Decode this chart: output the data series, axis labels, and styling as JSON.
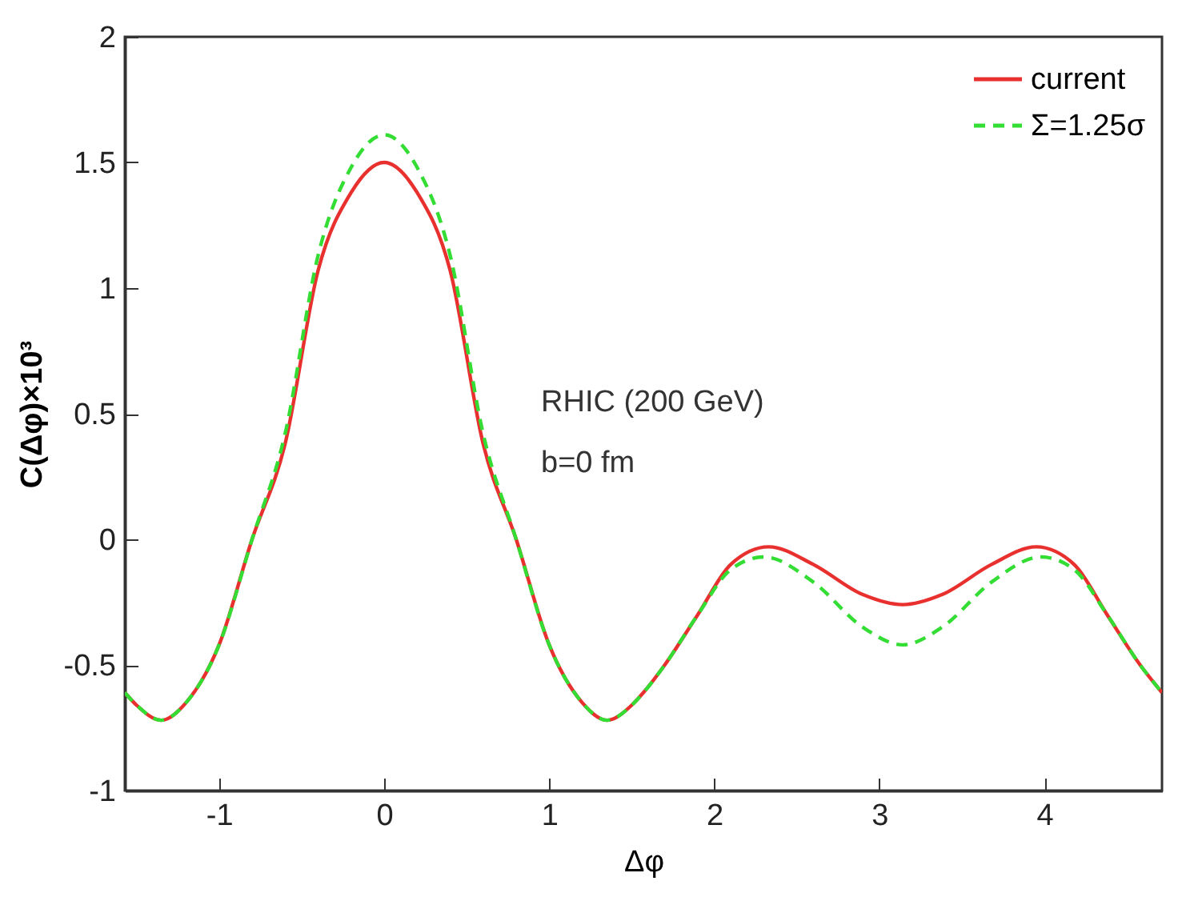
{
  "chart_data": {
    "type": "line",
    "xlabel": "Δφ",
    "ylabel": "C(Δφ)×10³",
    "xlim": [
      -1.5708,
      4.7124
    ],
    "xticks": [
      -1,
      0,
      1,
      2,
      3,
      4
    ],
    "ylim": [
      -1,
      2
    ],
    "yticks": [
      -1,
      -0.5,
      0,
      0.5,
      1,
      1.5,
      2
    ],
    "grid": false,
    "legend": "top right",
    "annotations": [
      "RHIC (200 GeV)",
      "b=0 fm"
    ],
    "series": [
      {
        "name": "current",
        "color": "#e8302e",
        "line_style": "solid",
        "x": [
          -1.5708,
          -1.5,
          -1.35,
          -1.2,
          -1.0,
          -0.8,
          -0.6,
          -0.4,
          -0.2,
          0,
          0.2,
          0.4,
          0.6,
          0.8,
          1.0,
          1.2,
          1.35,
          1.5,
          1.5708,
          1.7,
          1.9,
          2.1,
          2.33,
          2.6,
          2.9,
          3.1416,
          3.38,
          3.68,
          3.95,
          4.18,
          4.38,
          4.58,
          4.7124
        ],
        "values": [
          -0.61,
          -0.66,
          -0.72,
          -0.65,
          -0.42,
          0.0,
          0.38,
          1.07,
          1.38,
          1.5,
          1.38,
          1.07,
          0.38,
          0.0,
          -0.42,
          -0.65,
          -0.72,
          -0.66,
          -0.61,
          -0.5,
          -0.3,
          -0.1,
          -0.03,
          -0.1,
          -0.22,
          -0.26,
          -0.22,
          -0.1,
          -0.03,
          -0.1,
          -0.3,
          -0.5,
          -0.61
        ]
      },
      {
        "name": "Σ=1.25σ",
        "color": "#33dd33",
        "line_style": "dashed",
        "x": [
          -1.5708,
          -1.5,
          -1.35,
          -1.2,
          -1.0,
          -0.8,
          -0.6,
          -0.4,
          -0.2,
          0,
          0.2,
          0.4,
          0.6,
          0.8,
          1.0,
          1.2,
          1.35,
          1.5,
          1.5708,
          1.7,
          1.9,
          2.1,
          2.3,
          2.6,
          2.9,
          3.1416,
          3.38,
          3.68,
          3.98,
          4.18,
          4.38,
          4.58,
          4.7124
        ],
        "values": [
          -0.61,
          -0.66,
          -0.72,
          -0.65,
          -0.42,
          0.0,
          0.42,
          1.13,
          1.48,
          1.61,
          1.48,
          1.13,
          0.42,
          0.0,
          -0.42,
          -0.65,
          -0.72,
          -0.66,
          -0.61,
          -0.5,
          -0.3,
          -0.12,
          -0.07,
          -0.17,
          -0.35,
          -0.42,
          -0.35,
          -0.17,
          -0.07,
          -0.12,
          -0.3,
          -0.5,
          -0.61
        ]
      }
    ]
  }
}
